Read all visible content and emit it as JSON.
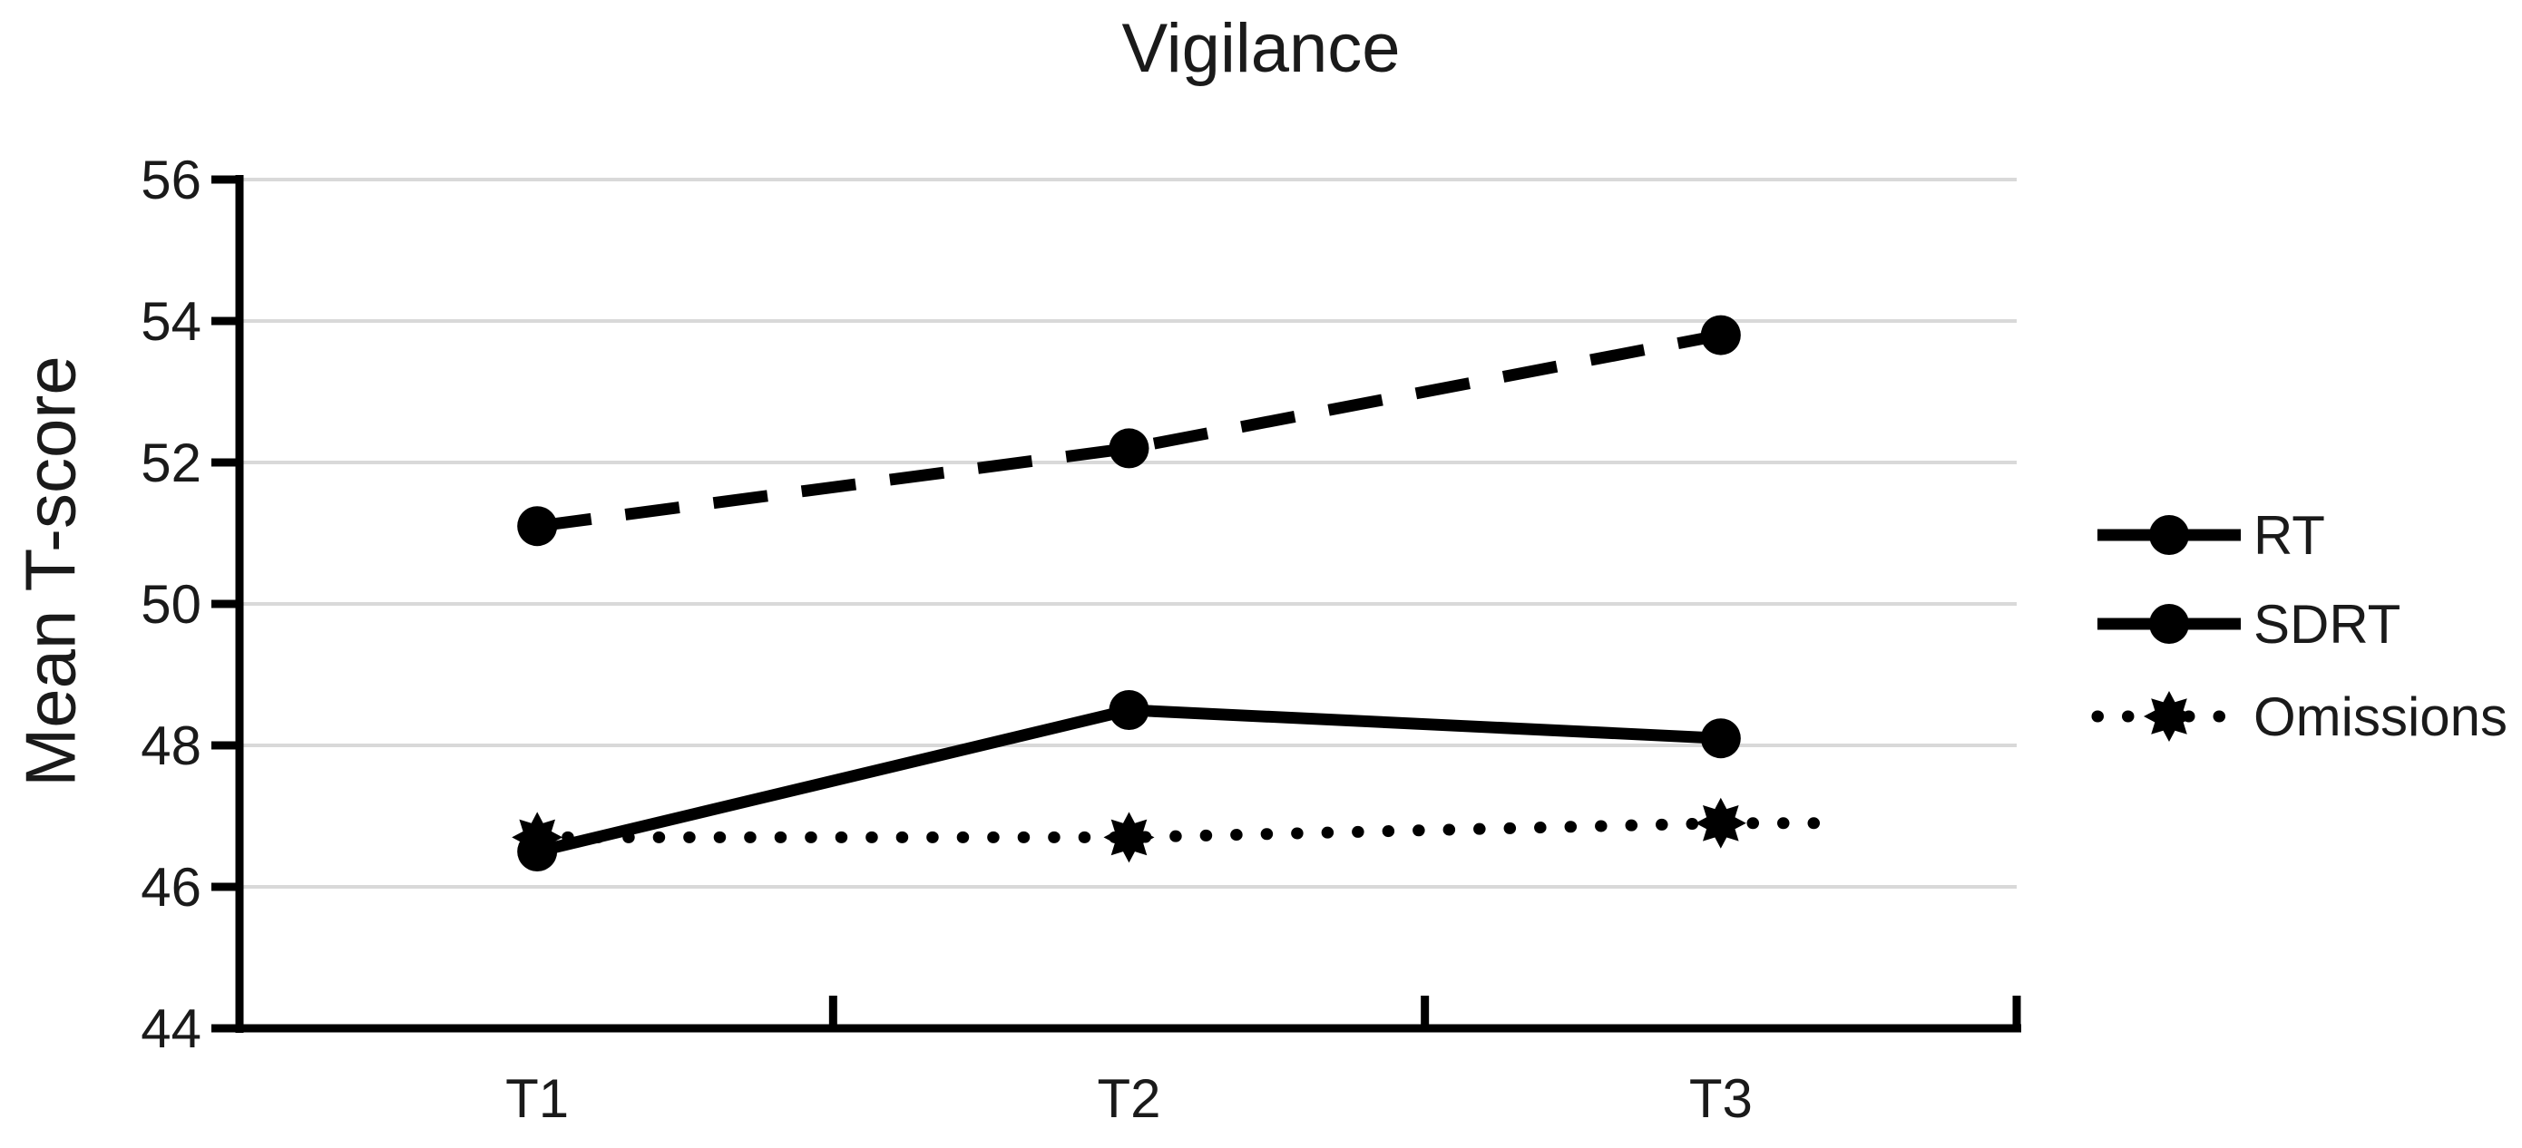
{
  "chart_data": {
    "type": "line",
    "title": "Vigilance",
    "ylabel": "Mean T-score",
    "categories": [
      "T1",
      "T2",
      "T3"
    ],
    "series": [
      {
        "name": "RT",
        "values": [
          46.5,
          48.5,
          48.1
        ],
        "line_style": "solid",
        "marker": "circle"
      },
      {
        "name": "SDRT",
        "values": [
          51.1,
          52.2,
          53.8
        ],
        "line_style": "dashed",
        "marker": "circle"
      },
      {
        "name": "Omissions",
        "values": [
          46.7,
          46.7,
          46.9
        ],
        "line_style": "dotted",
        "marker": "star8"
      }
    ],
    "ylim": [
      44,
      56
    ],
    "ytick_step": 2,
    "yticks": [
      44,
      46,
      48,
      50,
      52,
      54,
      56
    ],
    "grid": "horizontal-only",
    "legend_position": "right",
    "colors": {
      "series": "#000000",
      "gridline": "#d9d9d9",
      "axis": "#000000",
      "text": "#1a1a1a",
      "background": "#ffffff"
    }
  }
}
